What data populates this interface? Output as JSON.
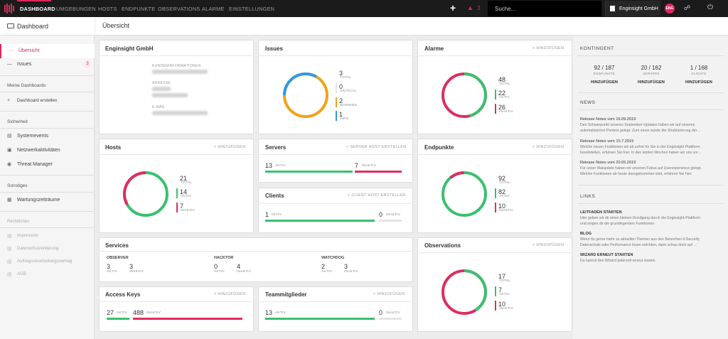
{
  "nav": {
    "items": [
      "DASHBOARD",
      "UMGEBUNGEN",
      "HOSTS",
      "ENDPUNKTE",
      "OBSERVATIONS",
      "ALARME",
      "EINSTELLUNGEN"
    ],
    "alarm_count": "3",
    "search_placeholder": "Suche...",
    "org": "Enginsight GmbH",
    "avatar": "ENG"
  },
  "sidebar": {
    "title": "Dashboard",
    "items": [
      "Übersicht",
      "Issues"
    ],
    "issues_badge": "3",
    "section_my": "Meine Dashboards",
    "create_dashboard": "Dashboard erstellen",
    "section_security": "Sicherheit",
    "security_items": [
      "Systemevents",
      "Netzwerkaktivitäten",
      "Threat Manager"
    ],
    "section_other": "Sonstiges",
    "other_items": [
      "Wartungszeiträume"
    ],
    "section_legal": "Rechtliches",
    "legal_items": [
      "Impressum",
      "Datenschutzerklärung",
      "Auftragsverarbeitungsvertrag",
      "AGB"
    ]
  },
  "page_title": "Übersicht",
  "org_card": {
    "title": "Enginsight GmbH",
    "labels": [
      "KUNDENINFORMATIONEN",
      "ADRESSE",
      "E-MAIL"
    ]
  },
  "issues": {
    "title": "Issues",
    "total": "3",
    "total_label": "TOTAL",
    "critical": "0",
    "critical_label": "CRITICAL",
    "warning": "2",
    "warning_label": "WARNING",
    "info": "1",
    "info_label": "INFO"
  },
  "alarme": {
    "title": "Alarme",
    "action": "+ HINZUFÜGEN",
    "total": "48",
    "total_label": "TOTAL",
    "active": "22",
    "active_label": "AKTIV",
    "inactive": "26",
    "inactive_label": "INAKTIV"
  },
  "hosts": {
    "title": "Hosts",
    "action": "+ HINZUFÜGEN",
    "total": "21",
    "total_label": "TOTAL",
    "active": "14",
    "active_label": "AKTIV",
    "inactive": "7",
    "inactive_label": "INAKTIV"
  },
  "servers": {
    "title": "Servers",
    "action": "+ SERVER HOST ERSTELLEN",
    "active": "13",
    "active_label": "AKTIV",
    "inactive": "7",
    "inactive_label": "INAKTIV"
  },
  "clients": {
    "title": "Clients",
    "action": "+ CLIENT HOST ERSTELLEN",
    "active": "1",
    "active_label": "AKTIV",
    "inactive": "0",
    "inactive_label": "INAKTIV"
  },
  "endpunkte": {
    "title": "Endpunkte",
    "action": "+ HINZUFÜGEN",
    "total": "92",
    "total_label": "TOTAL",
    "active": "82",
    "active_label": "AKTIV",
    "inactive": "10",
    "inactive_label": "INAKTIV"
  },
  "services": {
    "title": "Services",
    "groups": [
      {
        "name": "OBSERVER",
        "active": "3",
        "inactive": "3"
      },
      {
        "name": "HACKTOR",
        "active": "0",
        "inactive": "4"
      },
      {
        "name": "WATCHDOG",
        "active": "2",
        "inactive": "3"
      }
    ],
    "active_label": "AKTIV",
    "inactive_label": "INAKTIV"
  },
  "observations": {
    "title": "Observations",
    "action": "+ HINZUFÜGEN",
    "total": "17",
    "total_label": "TOTAL",
    "active": "7",
    "active_label": "AKTIV",
    "inactive": "10",
    "inactive_label": "INAKTIV"
  },
  "access_keys": {
    "title": "Access Keys",
    "action": "+ HINZUFÜGEN",
    "active": "27",
    "active_label": "AKTIV",
    "inactive": "488",
    "inactive_label": "INAKTIV"
  },
  "team": {
    "title": "Teammitglieder",
    "action": "+ HINZUFÜGEN",
    "active": "13",
    "active_label": "AKTIV",
    "inactive": "0",
    "inactive_label": "INAKTIV"
  },
  "kontingent": {
    "title": "KONTINGENT",
    "items": [
      {
        "value": "92 / 187",
        "label": "ENDPUNKTE",
        "action": "HINZUFÜGEN"
      },
      {
        "value": "20 / 162",
        "label": "SERVERS",
        "action": "HINZUFÜGEN"
      },
      {
        "value": "1 / 168",
        "label": "CLIENTS",
        "action": "HINZUFÜGEN"
      }
    ]
  },
  "news": {
    "title": "NEWS",
    "items": [
      {
        "title": "Release Notes vom 16.09.2019",
        "text1": "Den Schwerpunkt unseres September-Updates haben wir auf unseren",
        "text2": "automatisierten Pentest gelegt. Zum einen wurde die Strukturierung der..."
      },
      {
        "title": "Release Notes vom 15.7.2019",
        "text1": "Welche neuen Funktionen wir ab sofort für Sie in der Enginsight Plattform",
        "text2": "bereitstellen, erfahren Sie hier. In den letzten Wochen haben wir uns vor..."
      },
      {
        "title": "Release Notes vom 20.05.2019",
        "text1": "Für unser Maiupdate haben wir unseren Fokus auf Userexperience gelegt.",
        "text2": "Welche Funktionen ab heute dazugekommen sind, erfahren Sie hier."
      }
    ]
  },
  "links": {
    "title": "LINKS",
    "items": [
      {
        "title": "LEITFADEN STARTEN",
        "text1": "Hier geben wir dir einen kleinen Rundgang durch die Enginsight-Plattform",
        "text2": "und zeigen dir die grundlegenden Funktionen."
      },
      {
        "title": "BLOG",
        "text1": "Wenn du gerne mehr zu aktuellen Themen aus den Bereichen It-Security,",
        "text2": "Datenschutz oder Performance lesen möchten, dann schau doch auf ..."
      },
      {
        "title": "WIZARD ERNEUT STARTEN",
        "text1": "Du kannst den Wizard jederzeit erneut starten.",
        "text2": ""
      }
    ]
  },
  "colors": {
    "accent": "#e0265a",
    "green": "#3bbf6f",
    "red": "#dd2e60",
    "orange": "#f0a21e",
    "blue": "#2d9be0"
  }
}
